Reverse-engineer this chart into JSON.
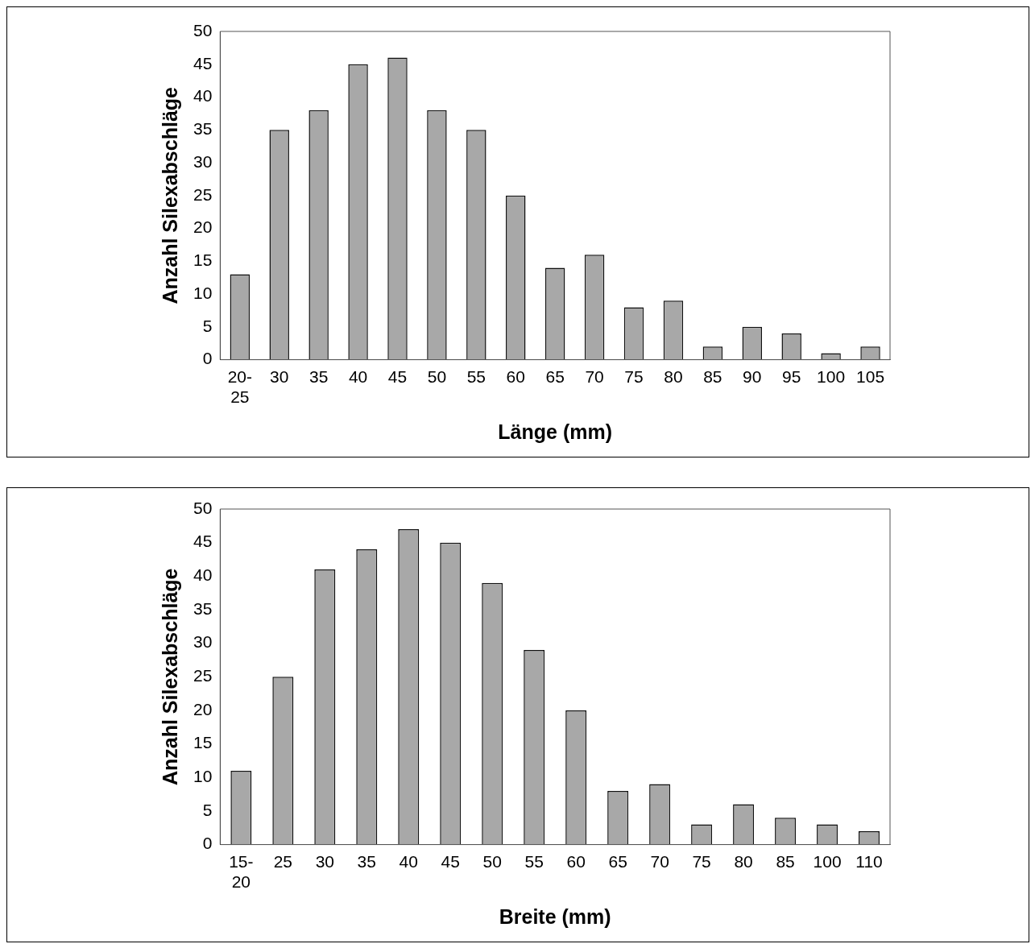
{
  "chart_data": [
    {
      "type": "bar",
      "xlabel": "Länge (mm)",
      "ylabel": "Anzahl Silexabschläge",
      "categories": [
        "20-25",
        "30",
        "35",
        "40",
        "45",
        "50",
        "55",
        "60",
        "65",
        "70",
        "75",
        "80",
        "85",
        "90",
        "95",
        "100",
        "105"
      ],
      "values": [
        13,
        35,
        38,
        45,
        46,
        38,
        35,
        25,
        14,
        16,
        8,
        9,
        2,
        5,
        4,
        1,
        2
      ],
      "color": "#a8a8a8",
      "ylim": [
        0,
        50
      ],
      "yticks": [
        0,
        5,
        10,
        15,
        20,
        25,
        30,
        35,
        40,
        45,
        50
      ],
      "grid": false,
      "legend": false
    },
    {
      "type": "bar",
      "xlabel": "Breite (mm)",
      "ylabel": "Anzahl Silexabschläge",
      "categories": [
        "15-20",
        "25",
        "30",
        "35",
        "40",
        "45",
        "50",
        "55",
        "60",
        "65",
        "70",
        "75",
        "80",
        "85",
        "100",
        "110"
      ],
      "values": [
        11,
        25,
        41,
        44,
        47,
        45,
        39,
        29,
        20,
        8,
        9,
        3,
        6,
        4,
        3,
        2
      ],
      "color": "#a8a8a8",
      "ylim": [
        0,
        50
      ],
      "yticks": [
        0,
        5,
        10,
        15,
        20,
        25,
        30,
        35,
        40,
        45,
        50
      ],
      "grid": false,
      "legend": false
    }
  ]
}
